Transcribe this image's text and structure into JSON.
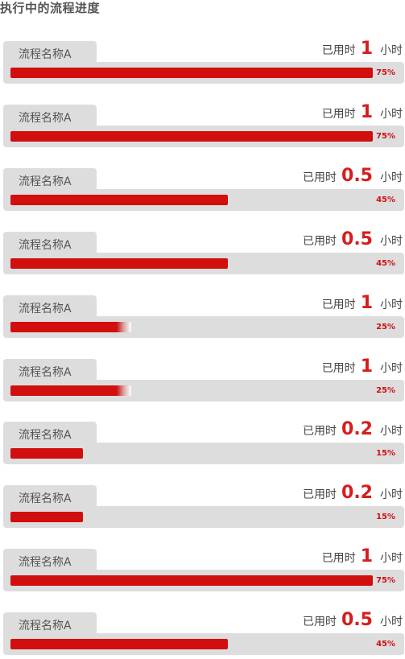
{
  "page_title": "执行中的流程进度",
  "colors": {
    "accent": "#d10f0f",
    "track": "#dddddd",
    "text": "#555555"
  },
  "processes": [
    {
      "name": "流程名称A",
      "time_prefix": "已用时",
      "time_value": "1",
      "time_unit": "小时",
      "progress": 75,
      "progress_label": "75%"
    },
    {
      "name": "流程名称A",
      "time_prefix": "已用时",
      "time_value": "1",
      "time_unit": "小时",
      "progress": 75,
      "progress_label": "75%"
    },
    {
      "name": "流程名称A",
      "time_prefix": "已用时",
      "time_value": "0.5",
      "time_unit": "小时",
      "progress": 45,
      "progress_label": "45%"
    },
    {
      "name": "流程名称A",
      "time_prefix": "已用时",
      "time_value": "0.5",
      "time_unit": "小时",
      "progress": 45,
      "progress_label": "45%"
    },
    {
      "name": "流程名称A",
      "time_prefix": "已用时",
      "time_value": "1",
      "time_unit": "小时",
      "progress": 25,
      "progress_label": "25%"
    },
    {
      "name": "流程名称A",
      "time_prefix": "已用时",
      "time_value": "1",
      "time_unit": "小时",
      "progress": 25,
      "progress_label": "25%"
    },
    {
      "name": "流程名称A",
      "time_prefix": "已用时",
      "time_value": "0.2",
      "time_unit": "小时",
      "progress": 15,
      "progress_label": "15%"
    },
    {
      "name": "流程名称A",
      "time_prefix": "已用时",
      "time_value": "0.2",
      "time_unit": "小时",
      "progress": 15,
      "progress_label": "15%"
    },
    {
      "name": "流程名称A",
      "time_prefix": "已用时",
      "time_value": "1",
      "time_unit": "小时",
      "progress": 75,
      "progress_label": "75%"
    },
    {
      "name": "流程名称A",
      "time_prefix": "已用时",
      "time_value": "0.5",
      "time_unit": "小时",
      "progress": 45,
      "progress_label": "45%"
    }
  ]
}
